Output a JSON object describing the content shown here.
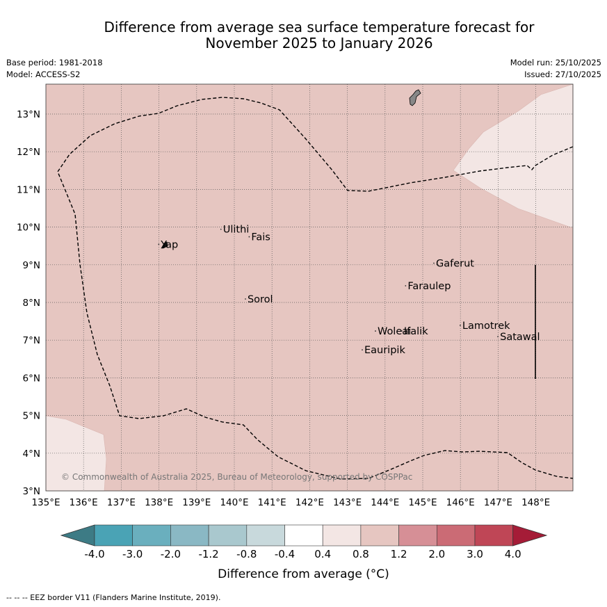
{
  "title": {
    "line1": "Difference from average sea surface temperature forecast for",
    "line2": "November 2025 to January 2026"
  },
  "meta": {
    "base_period": "Base period: 1981-2018",
    "model": "Model: ACCESS-S2",
    "model_run": "Model run: 25/10/2025",
    "issued": "Issued: 27/10/2025"
  },
  "map": {
    "lon_range": [
      135,
      149
    ],
    "lat_range": [
      3,
      13.8
    ],
    "lon_ticks": [
      "135°E",
      "136°E",
      "137°E",
      "138°E",
      "139°E",
      "140°E",
      "141°E",
      "142°E",
      "143°E",
      "144°E",
      "145°E",
      "146°E",
      "147°E",
      "148°E"
    ],
    "lat_ticks": [
      "3°N",
      "4°N",
      "5°N",
      "6°N",
      "7°N",
      "8°N",
      "9°N",
      "10°N",
      "11°N",
      "12°N",
      "13°N"
    ],
    "places": [
      {
        "name": "Yap",
        "lon": 138.05,
        "lat": 9.45
      },
      {
        "name": "Ulithi",
        "lon": 139.7,
        "lat": 9.85
      },
      {
        "name": "Fais",
        "lon": 140.45,
        "lat": 9.65
      },
      {
        "name": "Gaferut",
        "lon": 145.35,
        "lat": 8.95
      },
      {
        "name": "Faraulep",
        "lon": 144.6,
        "lat": 8.35
      },
      {
        "name": "Sorol",
        "lon": 140.35,
        "lat": 8.0
      },
      {
        "name": "Lamotrek",
        "lon": 146.05,
        "lat": 7.3
      },
      {
        "name": "Woleai",
        "lon": 143.8,
        "lat": 7.15
      },
      {
        "name": "Ifalik",
        "lon": 144.5,
        "lat": 7.15
      },
      {
        "name": "Satawal",
        "lon": 147.05,
        "lat": 7.0
      },
      {
        "name": "Eauripik",
        "lon": 143.45,
        "lat": 6.65
      }
    ],
    "copyright": "© Commonwealth of Australia 2025, Bureau of Meteorology, supported by COSPPac",
    "fill_color_main": "#e6c6c1",
    "fill_color_light": "#f3e6e4",
    "land_color": "#888888"
  },
  "colorbar": {
    "labels": [
      "-4.0",
      "-3.0",
      "-2.0",
      "-1.2",
      "-0.8",
      "-0.4",
      "0.4",
      "0.8",
      "1.2",
      "2.0",
      "3.0",
      "4.0"
    ],
    "colors": [
      "#4aa3b5",
      "#6aafbe",
      "#8ab8c4",
      "#a9c8ce",
      "#c8d9dc",
      "#ffffff",
      "#f3e6e4",
      "#e6c6c1",
      "#d68f96",
      "#cb6b75",
      "#bf4656"
    ],
    "extend_low": "#3d7b85",
    "extend_high": "#a51c37",
    "title": "Difference from average (°C)"
  },
  "footer": "--  --  -- EEZ border V11 (Flanders Marine Institute, 2019)."
}
